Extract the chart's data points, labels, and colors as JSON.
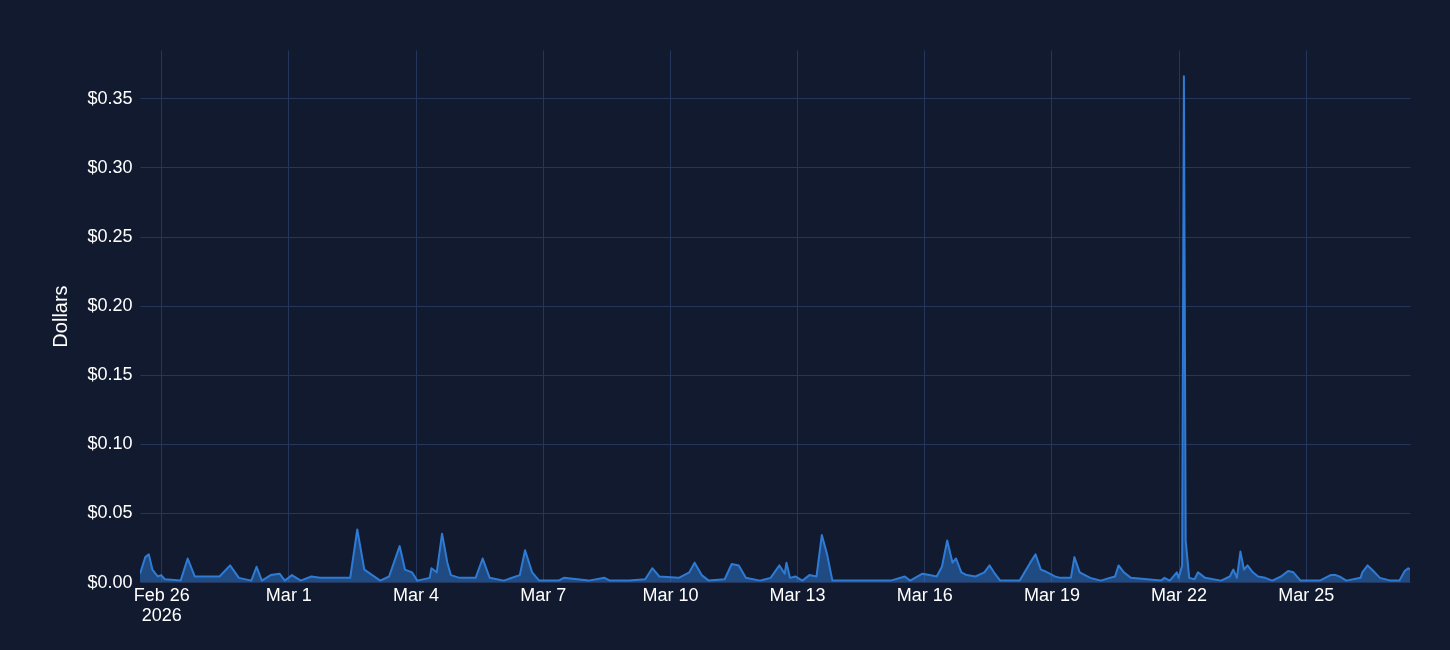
{
  "chart_data": {
    "type": "area",
    "ylabel": "Dollars",
    "grid": true,
    "marker": "none",
    "xlim": [
      "2026-02-25T12:00",
      "2026-03-27T11:00"
    ],
    "xticks": [
      {
        "value": "2026-02-26T00:00",
        "label": "Feb 26\n2026"
      },
      {
        "value": "2026-03-01T00:00",
        "label": "Mar 1"
      },
      {
        "value": "2026-03-04T00:00",
        "label": "Mar 4"
      },
      {
        "value": "2026-03-07T00:00",
        "label": "Mar 7"
      },
      {
        "value": "2026-03-10T00:00",
        "label": "Mar 10"
      },
      {
        "value": "2026-03-13T00:00",
        "label": "Mar 13"
      },
      {
        "value": "2026-03-16T00:00",
        "label": "Mar 16"
      },
      {
        "value": "2026-03-19T00:00",
        "label": "Mar 19"
      },
      {
        "value": "2026-03-22T00:00",
        "label": "Mar 22"
      },
      {
        "value": "2026-03-25T00:00",
        "label": "Mar 25"
      }
    ],
    "ylim": [
      0,
      0.385
    ],
    "yticks": [
      {
        "value": 0,
        "label": "$0.00"
      },
      {
        "value": 0.05,
        "label": "$0.05"
      },
      {
        "value": 0.1,
        "label": "$0.10"
      },
      {
        "value": 0.15,
        "label": "$0.15"
      },
      {
        "value": 0.2,
        "label": "$0.20"
      },
      {
        "value": 0.25,
        "label": "$0.25"
      },
      {
        "value": 0.3,
        "label": "$0.30"
      },
      {
        "value": 0.35,
        "label": "$0.35"
      }
    ],
    "x": [
      "2026-02-25T12:00",
      "2026-02-25T15:00",
      "2026-02-25T17:00",
      "2026-02-25T19:00",
      "2026-02-25T22:00",
      "2026-02-26T00:00",
      "2026-02-26T02:00",
      "2026-02-26T11:00",
      "2026-02-26T15:00",
      "2026-02-26T19:00",
      "2026-02-27T09:00",
      "2026-02-27T15:00",
      "2026-02-27T20:00",
      "2026-02-28T03:00",
      "2026-02-28T06:00",
      "2026-02-28T09:00",
      "2026-02-28T14:00",
      "2026-02-28T19:00",
      "2026-02-28T22:00",
      "2026-03-01T02:00",
      "2026-03-01T07:00",
      "2026-03-01T13:00",
      "2026-03-01T18:00",
      "2026-03-01T23:00",
      "2026-03-02T11:00",
      "2026-03-02T15:00",
      "2026-03-02T19:00",
      "2026-03-03T04:00",
      "2026-03-03T09:00",
      "2026-03-03T15:00",
      "2026-03-03T18:00",
      "2026-03-03T22:00",
      "2026-03-04T01:00",
      "2026-03-04T08:00",
      "2026-03-04T09:00",
      "2026-03-04T12:00",
      "2026-03-04T15:00",
      "2026-03-04T18:00",
      "2026-03-04T20:00",
      "2026-03-05T01:00",
      "2026-03-05T06:00",
      "2026-03-05T10:00",
      "2026-03-05T14:00",
      "2026-03-05T18:00",
      "2026-03-06T02:00",
      "2026-03-06T11:00",
      "2026-03-06T14:00",
      "2026-03-06T18:00",
      "2026-03-06T22:00",
      "2026-03-07T09:00",
      "2026-03-07T12:00",
      "2026-03-08T02:00",
      "2026-03-08T11:00",
      "2026-03-08T14:00",
      "2026-03-09T01:00",
      "2026-03-09T10:00",
      "2026-03-09T14:00",
      "2026-03-09T18:00",
      "2026-03-10T05:00",
      "2026-03-10T11:00",
      "2026-03-10T14:00",
      "2026-03-10T18:00",
      "2026-03-10T22:00",
      "2026-03-11T07:00",
      "2026-03-11T11:00",
      "2026-03-11T15:00",
      "2026-03-11T19:00",
      "2026-03-12T03:00",
      "2026-03-12T09:00",
      "2026-03-12T14:00",
      "2026-03-12T17:00",
      "2026-03-12T18:00",
      "2026-03-12T20:00",
      "2026-03-12T23:00",
      "2026-03-13T03:00",
      "2026-03-13T07:00",
      "2026-03-13T11:00",
      "2026-03-13T14:00",
      "2026-03-13T17:00",
      "2026-03-13T20:00",
      "2026-03-14T06:00",
      "2026-03-15T05:00",
      "2026-03-15T13:00",
      "2026-03-15T16:00",
      "2026-03-15T23:00",
      "2026-03-16T03:00",
      "2026-03-16T07:00",
      "2026-03-16T10:00",
      "2026-03-16T13:00",
      "2026-03-16T16:00",
      "2026-03-16T18:00",
      "2026-03-16T21:00",
      "2026-03-17T00:00",
      "2026-03-17T05:00",
      "2026-03-17T10:00",
      "2026-03-17T13:00",
      "2026-03-17T16:00",
      "2026-03-17T19:00",
      "2026-03-18T06:00",
      "2026-03-18T12:00",
      "2026-03-18T15:00",
      "2026-03-18T18:00",
      "2026-03-18T20:00",
      "2026-03-19T02:00",
      "2026-03-19T05:00",
      "2026-03-19T11:00",
      "2026-03-19T13:00",
      "2026-03-19T16:00",
      "2026-03-19T22:00",
      "2026-03-20T04:00",
      "2026-03-20T09:00",
      "2026-03-20T12:00",
      "2026-03-20T14:00",
      "2026-03-20T17:00",
      "2026-03-20T21:00",
      "2026-03-21T14:00",
      "2026-03-21T16:00",
      "2026-03-21T19:00",
      "2026-03-21T23:00",
      "2026-03-22T00:00",
      "2026-03-22T02:00",
      "2026-03-22T03:00",
      "2026-03-22T04:00",
      "2026-03-22T06:00",
      "2026-03-22T09:00",
      "2026-03-22T11:00",
      "2026-03-22T15:00",
      "2026-03-23T00:00",
      "2026-03-23T05:00",
      "2026-03-23T07:00",
      "2026-03-23T09:00",
      "2026-03-23T11:00",
      "2026-03-23T13:00",
      "2026-03-23T15:00",
      "2026-03-23T18:00",
      "2026-03-23T21:00",
      "2026-03-24T01:00",
      "2026-03-24T05:00",
      "2026-03-24T10:00",
      "2026-03-24T14:00",
      "2026-03-24T17:00",
      "2026-03-24T21:00",
      "2026-03-25T08:00",
      "2026-03-25T14:00",
      "2026-03-25T17:00",
      "2026-03-25T19:00",
      "2026-03-25T23:00",
      "2026-03-26T07:00",
      "2026-03-26T08:00",
      "2026-03-26T11:00",
      "2026-03-26T15:00",
      "2026-03-26T18:00",
      "2026-03-27T00:00",
      "2026-03-27T05:00",
      "2026-03-27T08:00",
      "2026-03-27T10:00",
      "2026-03-27T11:00"
    ],
    "series": [
      {
        "color": "#2e7bd6",
        "values": [
          0.006,
          0.018,
          0.02,
          0.009,
          0.004,
          0.005,
          0.002,
          0.001,
          0.017,
          0.004,
          0.004,
          0.012,
          0.003,
          0.001,
          0.011,
          0.001,
          0.005,
          0.006,
          0.001,
          0.005,
          0.001,
          0.004,
          0.003,
          0.003,
          0.003,
          0.038,
          0.009,
          0.001,
          0.004,
          0.026,
          0.009,
          0.007,
          0.001,
          0.003,
          0.01,
          0.007,
          0.035,
          0.014,
          0.005,
          0.003,
          0.003,
          0.003,
          0.017,
          0.003,
          0.001,
          0.005,
          0.023,
          0.007,
          0.001,
          0.001,
          0.003,
          0.001,
          0.003,
          0.001,
          0.001,
          0.002,
          0.01,
          0.004,
          0.003,
          0.007,
          0.014,
          0.005,
          0.001,
          0.002,
          0.013,
          0.012,
          0.003,
          0.001,
          0.003,
          0.012,
          0.006,
          0.014,
          0.003,
          0.004,
          0.001,
          0.005,
          0.004,
          0.034,
          0.02,
          0.001,
          0.001,
          0.001,
          0.004,
          0.001,
          0.006,
          0.005,
          0.004,
          0.011,
          0.03,
          0.014,
          0.017,
          0.007,
          0.005,
          0.004,
          0.007,
          0.012,
          0.006,
          0.001,
          0.001,
          0.014,
          0.02,
          0.009,
          0.008,
          0.004,
          0.003,
          0.003,
          0.018,
          0.007,
          0.003,
          0.001,
          0.003,
          0.004,
          0.012,
          0.007,
          0.003,
          0.001,
          0.003,
          0.001,
          0.007,
          0.003,
          0.012,
          0.366,
          0.03,
          0.003,
          0.002,
          0.007,
          0.003,
          0.001,
          0.004,
          0.009,
          0.003,
          0.022,
          0.009,
          0.012,
          0.007,
          0.004,
          0.003,
          0.001,
          0.004,
          0.008,
          0.007,
          0.001,
          0.001,
          0.005,
          0.005,
          0.004,
          0.001,
          0.003,
          0.007,
          0.012,
          0.007,
          0.003,
          0.001,
          0.001,
          0.008,
          0.01,
          0.009
        ]
      }
    ]
  }
}
